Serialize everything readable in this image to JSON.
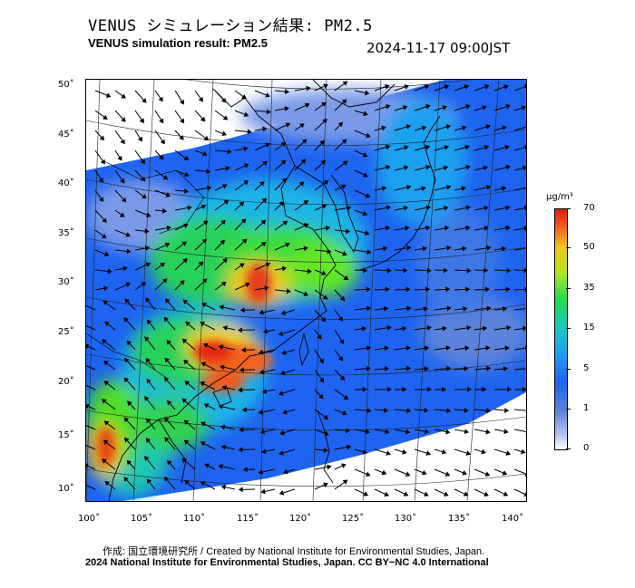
{
  "header": {
    "title_jp": "VENUS シミュレーション結果: PM2.5",
    "title_en": "VENUS simulation result: PM2.5",
    "timestamp": "2024-11-17 09:00JST"
  },
  "map": {
    "region": "East Asia",
    "lat_labels": [
      "50˚",
      "45˚",
      "40˚",
      "35˚",
      "30˚",
      "25˚",
      "20˚",
      "15˚",
      "10˚"
    ],
    "lon_labels": [
      "100˚",
      "105˚",
      "110˚",
      "115˚",
      "120˚",
      "125˚",
      "130˚",
      "135˚",
      "140˚"
    ],
    "overlay": "wind vectors"
  },
  "colorbar": {
    "unit": "µg/m³",
    "labels": [
      "70",
      "50",
      "35",
      "15",
      "5",
      "1",
      "0"
    ],
    "colors": [
      "#dc1e1e",
      "#f05a1e",
      "#f0c81e",
      "#1edc50",
      "#1ea0f0",
      "#1e64f0",
      "#ffffff"
    ]
  },
  "footer": {
    "credit_line1": "作成: 国立環境研究所 / Created by National Institute for Environmental Studies, Japan.",
    "credit_line2": "2024 National Institute for Environmental Studies, Japan. CC BY−NC 4.0 International"
  }
}
